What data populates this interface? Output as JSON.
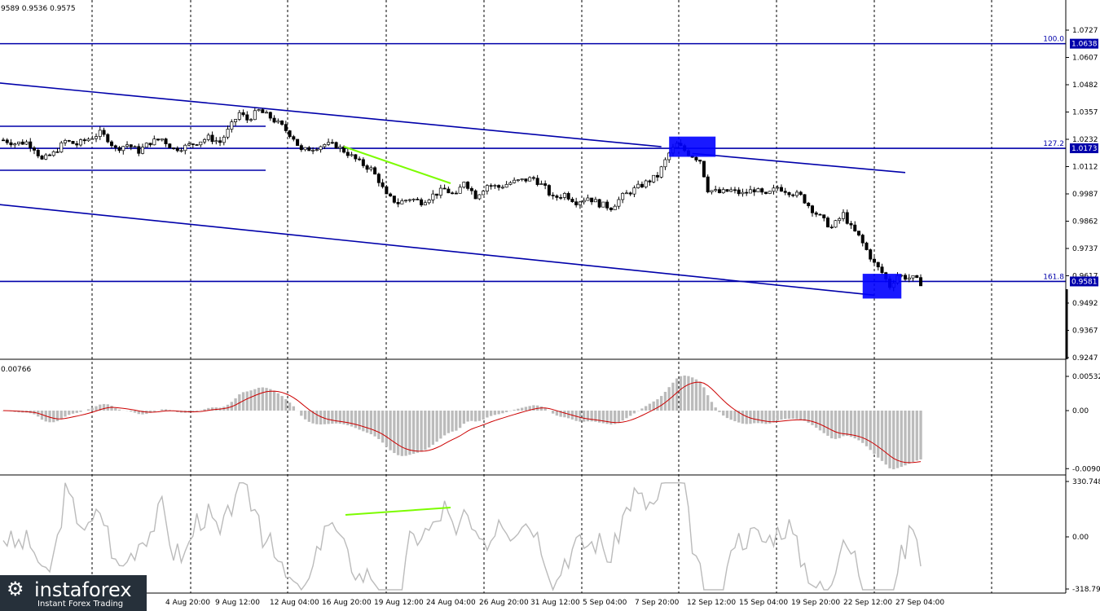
{
  "header": {
    "ohlc_text": "9589 0.9536 0.9575"
  },
  "chart_data": {
    "type": "candlestick",
    "time_labels": [
      "4 Aug 20:00",
      "9 Aug 12:00",
      "12 Aug 04:00",
      "16 Aug 20:00",
      "19 Aug 12:00",
      "24 Aug 04:00",
      "26 Aug 20:00",
      "31 Aug 12:00",
      "5 Sep 04:00",
      "7 Sep 20:00",
      "12 Sep 12:00",
      "15 Sep 04:00",
      "19 Sep 20:00",
      "22 Sep 12:00",
      "27 Sep 04:00"
    ],
    "price_axis": {
      "ticks": [
        "1.0727",
        "1.0607",
        "1.0482",
        "1.0357",
        "1.0232",
        "1.0112",
        "0.9987",
        "0.9862",
        "0.9737",
        "0.9617",
        "0.9492",
        "0.9367",
        "0.9247"
      ],
      "range": [
        0.9235,
        1.0825
      ]
    },
    "levels": [
      {
        "name": "100.0",
        "price": 1.0638,
        "tag": "1.0638"
      },
      {
        "name": "127.2",
        "price": 1.0173,
        "tag": "1.0173"
      },
      {
        "name": "161.8",
        "price": 0.9581,
        "tag": "0.9581"
      }
    ],
    "close_path": [
      {
        "x": 0,
        "y": 1.021
      },
      {
        "x": 3,
        "y": 1.0195
      },
      {
        "x": 6,
        "y": 1.02
      },
      {
        "x": 8,
        "y": 1.0175
      },
      {
        "x": 10,
        "y": 1.012
      },
      {
        "x": 13,
        "y": 1.015
      },
      {
        "x": 16,
        "y": 1.0205
      },
      {
        "x": 19,
        "y": 1.019
      },
      {
        "x": 22,
        "y": 1.0215
      },
      {
        "x": 25,
        "y": 1.024
      },
      {
        "x": 27,
        "y": 1.0215
      },
      {
        "x": 29,
        "y": 1.017
      },
      {
        "x": 32,
        "y": 1.019
      },
      {
        "x": 35,
        "y": 1.016
      },
      {
        "x": 38,
        "y": 1.02
      },
      {
        "x": 41,
        "y": 1.0215
      },
      {
        "x": 44,
        "y": 1.017
      },
      {
        "x": 47,
        "y": 1.018
      },
      {
        "x": 50,
        "y": 1.02
      },
      {
        "x": 53,
        "y": 1.022
      },
      {
        "x": 56,
        "y": 1.02
      },
      {
        "x": 58,
        "y": 1.025
      },
      {
        "x": 61,
        "y": 1.033
      },
      {
        "x": 63,
        "y": 1.03
      },
      {
        "x": 66,
        "y": 1.034
      },
      {
        "x": 69,
        "y": 1.031
      },
      {
        "x": 72,
        "y": 1.027
      },
      {
        "x": 75,
        "y": 1.022
      },
      {
        "x": 77,
        "y": 1.016
      },
      {
        "x": 80,
        "y": 1.0175
      },
      {
        "x": 83,
        "y": 1.019
      },
      {
        "x": 86,
        "y": 1.0185
      },
      {
        "x": 89,
        "y": 1.015
      },
      {
        "x": 92,
        "y": 1.011
      },
      {
        "x": 95,
        "y": 1.008
      },
      {
        "x": 97,
        "y": 1.003
      },
      {
        "x": 99,
        "y": 0.996
      },
      {
        "x": 102,
        "y": 0.993
      },
      {
        "x": 105,
        "y": 0.995
      },
      {
        "x": 108,
        "y": 0.9935
      },
      {
        "x": 111,
        "y": 0.9965
      },
      {
        "x": 114,
        "y": 0.999
      },
      {
        "x": 117,
        "y": 0.996
      },
      {
        "x": 119,
        "y": 1.003
      },
      {
        "x": 122,
        "y": 0.996
      },
      {
        "x": 125,
        "y": 1.001
      },
      {
        "x": 128,
        "y": 1.0
      },
      {
        "x": 131,
        "y": 1.002
      },
      {
        "x": 134,
        "y": 1.003
      },
      {
        "x": 137,
        "y": 1.004
      },
      {
        "x": 140,
        "y": 0.9995
      },
      {
        "x": 142,
        "y": 0.995
      },
      {
        "x": 145,
        "y": 0.997
      },
      {
        "x": 148,
        "y": 0.9935
      },
      {
        "x": 151,
        "y": 0.9955
      },
      {
        "x": 154,
        "y": 0.9925
      },
      {
        "x": 157,
        "y": 0.991
      },
      {
        "x": 160,
        "y": 0.996
      },
      {
        "x": 163,
        "y": 0.999
      },
      {
        "x": 166,
        "y": 1.002
      },
      {
        "x": 169,
        "y": 1.005
      },
      {
        "x": 172,
        "y": 1.015
      },
      {
        "x": 174,
        "y": 1.019
      },
      {
        "x": 177,
        "y": 1.015
      },
      {
        "x": 180,
        "y": 1.012
      },
      {
        "x": 182,
        "y": 0.999
      },
      {
        "x": 185,
        "y": 0.9975
      },
      {
        "x": 188,
        "y": 0.9985
      },
      {
        "x": 191,
        "y": 0.997
      },
      {
        "x": 194,
        "y": 0.999
      },
      {
        "x": 197,
        "y": 0.996
      },
      {
        "x": 200,
        "y": 1.0
      },
      {
        "x": 203,
        "y": 0.998
      },
      {
        "x": 206,
        "y": 0.996
      },
      {
        "x": 209,
        "y": 0.99
      },
      {
        "x": 212,
        "y": 0.985
      },
      {
        "x": 214,
        "y": 0.982
      },
      {
        "x": 217,
        "y": 0.988
      },
      {
        "x": 219,
        "y": 0.982
      },
      {
        "x": 221,
        "y": 0.978
      },
      {
        "x": 223,
        "y": 0.972
      },
      {
        "x": 225,
        "y": 0.966
      },
      {
        "x": 227,
        "y": 0.962
      },
      {
        "x": 229,
        "y": 0.956
      },
      {
        "x": 231,
        "y": 0.961
      },
      {
        "x": 233,
        "y": 0.96
      },
      {
        "x": 235,
        "y": 0.9595
      },
      {
        "x": 237,
        "y": 0.9575
      }
    ],
    "trend_lines": [
      {
        "from": {
          "x": -5,
          "y": 1.047
        },
        "to": {
          "x": 170,
          "y": 1.018
        }
      },
      {
        "from": {
          "x": 178,
          "y": 1.015
        },
        "to": {
          "x": 233,
          "y": 1.0065
        }
      },
      {
        "from": {
          "x": -5,
          "y": 0.993
        },
        "to": {
          "x": 225,
          "y": 0.952
        }
      }
    ],
    "boxes": [
      {
        "x0": 172,
        "x1": 184,
        "y0": 1.0135,
        "y1": 1.0225
      },
      {
        "x0": 222,
        "x1": 232,
        "y0": 0.9505,
        "y1": 0.9615
      }
    ],
    "macd": {
      "top_label": "0.00766",
      "ticks": [
        "0.00532",
        "0.00",
        "-0.00902"
      ],
      "range": [
        -0.01,
        0.0076
      ]
    },
    "cci": {
      "ticks": [
        "330.7482",
        "0.00",
        "-318.798"
      ],
      "range": [
        -318.798,
        330.7482
      ]
    }
  },
  "branding": {
    "logo_text": "instaforex",
    "tagline": "Instant Forex Trading"
  },
  "colors": {
    "level": "#0000aa",
    "box": "#0000ff",
    "divergence": "#7cfc00",
    "signal": "#cc0000",
    "histogram": "#bbbbbb",
    "cci_line": "#bbbbbb"
  }
}
